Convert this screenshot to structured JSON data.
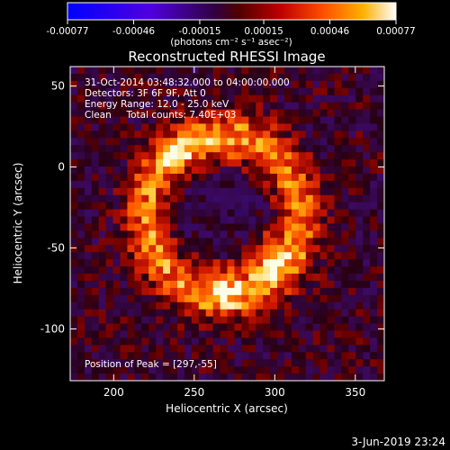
{
  "chart_data": {
    "type": "heatmap",
    "title": "Reconstructed RHESSI Image",
    "xlabel": "Heliocentric X (arcsec)",
    "ylabel": "Heliocentric Y (arcsec)",
    "xlim": [
      173,
      368
    ],
    "ylim": [
      -132,
      62
    ],
    "xticks": [
      200,
      250,
      300,
      350
    ],
    "yticks": [
      50,
      0,
      -50,
      -100
    ],
    "colorbar": {
      "units": "(photons cm⁻² s⁻¹ asec⁻²)",
      "range": [
        -0.00077,
        0.00077
      ],
      "tick_values": [
        -0.00077,
        -0.00046,
        -0.00015,
        0.00015,
        0.00046,
        0.00077
      ],
      "tick_labels": [
        "-0.00077",
        "-0.00046",
        "-0.00015",
        "0.00015",
        "0.00046",
        "0.00077"
      ]
    },
    "annotations": [
      "31-Oct-2014 03:48:32.000 to 04:00:00.000",
      "Detectors: 3F 6F 9F, Att 0",
      "Energy Range: 12.0 - 25.0 keV",
      "Clean     Total counts: 7.40E+03"
    ],
    "peak_label": "Position of Peak = [297,-55]",
    "peak": [
      297,
      -55
    ]
  },
  "footer": {
    "date": "3-Jun-2019 23:24"
  }
}
